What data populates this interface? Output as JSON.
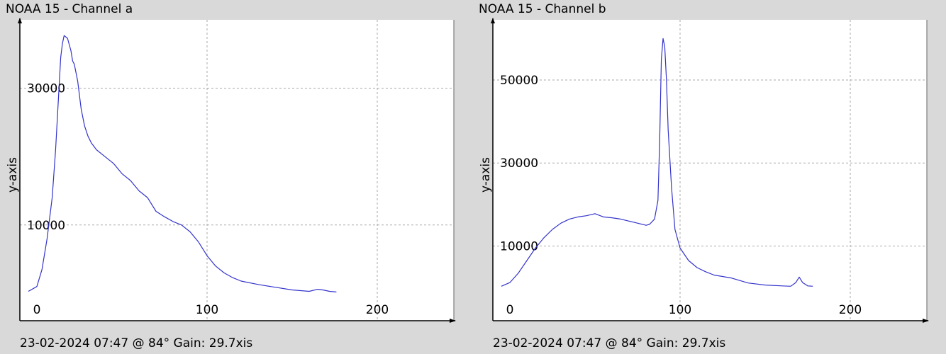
{
  "colors": {
    "background": "#d9d9d9",
    "plot_bg": "#ffffff",
    "line": "#3333cc",
    "grid": "#aaaaaa",
    "axis": "#000000"
  },
  "chart_data": [
    {
      "type": "line",
      "title": "NOAA 15 - Channel a",
      "footer": "23-02-2024 07:47 @ 84° Gain: 29.7xis",
      "ylabel": "y-axis",
      "xlabel": "",
      "xlim": [
        -10,
        245
      ],
      "ylim": [
        -4000,
        40000
      ],
      "xticks": [
        0,
        100,
        200
      ],
      "yticks": [
        10000,
        30000
      ],
      "grid": true,
      "series": [
        {
          "x": [
            -5,
            0,
            3,
            6,
            9,
            11,
            13,
            14,
            15,
            16,
            18,
            20,
            21,
            22,
            24,
            26,
            28,
            30,
            32,
            35,
            40,
            45,
            50,
            55,
            60,
            65,
            70,
            75,
            80,
            85,
            90,
            95,
            100,
            105,
            110,
            115,
            120,
            130,
            140,
            150,
            160,
            165,
            168,
            172,
            176
          ],
          "y": [
            300,
            1000,
            3500,
            8000,
            14000,
            21000,
            30000,
            34500,
            36500,
            37700,
            37300,
            35500,
            34000,
            33500,
            31000,
            27000,
            24500,
            23000,
            22000,
            21000,
            20000,
            19000,
            17500,
            16500,
            15000,
            14000,
            12000,
            11200,
            10500,
            10000,
            9000,
            7500,
            5500,
            4000,
            3000,
            2300,
            1800,
            1300,
            900,
            500,
            300,
            600,
            500,
            300,
            200
          ]
        }
      ]
    },
    {
      "type": "line",
      "title": "NOAA 15 - Channel b",
      "footer": "23-02-2024 07:47 @ 84° Gain: 29.7xis",
      "ylabel": "y-axis",
      "xlabel": "",
      "xlim": [
        -10,
        245
      ],
      "ylim": [
        -8000,
        64500
      ],
      "xticks": [
        0,
        100,
        200
      ],
      "yticks": [
        10000,
        30000,
        50000
      ],
      "grid": true,
      "series": [
        {
          "x": [
            -5,
            0,
            5,
            10,
            15,
            20,
            25,
            30,
            35,
            40,
            45,
            50,
            55,
            60,
            65,
            70,
            75,
            80,
            82,
            85,
            87,
            88,
            89,
            90,
            91,
            92,
            93,
            95,
            97,
            100,
            105,
            110,
            115,
            120,
            130,
            140,
            150,
            160,
            165,
            168,
            170,
            172,
            175,
            178
          ],
          "y": [
            300,
            1200,
            3500,
            6500,
            9500,
            12000,
            14000,
            15500,
            16500,
            17000,
            17300,
            17800,
            17000,
            16800,
            16500,
            16000,
            15500,
            15000,
            15200,
            16500,
            21000,
            35000,
            55000,
            60000,
            58000,
            50000,
            38000,
            24000,
            14000,
            9500,
            6500,
            4800,
            3800,
            3000,
            2300,
            1100,
            600,
            400,
            300,
            1200,
            2500,
            1200,
            400,
            300
          ]
        }
      ]
    }
  ]
}
